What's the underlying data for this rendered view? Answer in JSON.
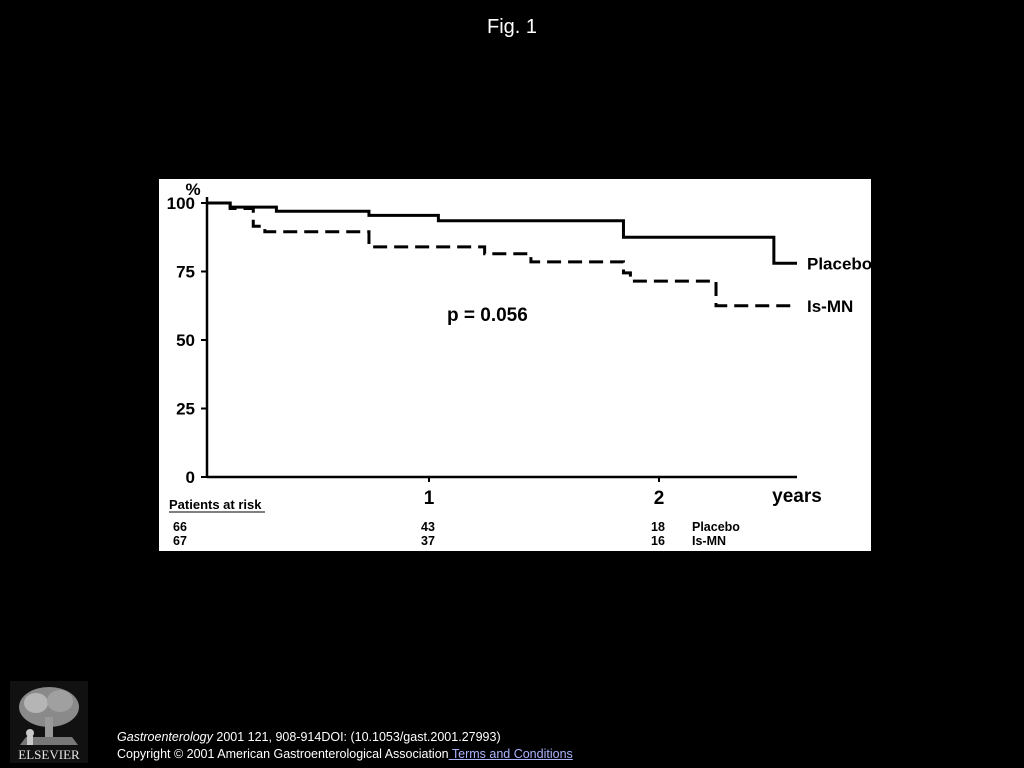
{
  "figure_title": "Fig. 1",
  "chart_data": {
    "type": "line",
    "title": "",
    "xlabel": "years",
    "ylabel": "%",
    "xlim": [
      0,
      2.6
    ],
    "ylim": [
      0,
      100
    ],
    "x_ticks": [
      "1",
      "2"
    ],
    "y_ticks": [
      "0",
      "25",
      "50",
      "75",
      "100"
    ],
    "series": [
      {
        "name": "Placebo",
        "style": "solid",
        "x": [
          0,
          0.1,
          0.3,
          0.7,
          1.0,
          1.8,
          2.45,
          2.55
        ],
        "y": [
          100,
          98.5,
          97,
          95.5,
          93.5,
          87.5,
          78,
          78
        ]
      },
      {
        "name": "Is-MN",
        "style": "dashed",
        "x": [
          0,
          0.1,
          0.2,
          0.25,
          0.7,
          1.2,
          1.4,
          1.8,
          1.83,
          2.2,
          2.55
        ],
        "y": [
          100,
          98,
          91.5,
          89.5,
          84,
          81.5,
          78.5,
          74.5,
          71.5,
          62.5,
          62.5
        ]
      }
    ],
    "annotation": "p = 0.056",
    "risk_table": {
      "heading": "Patients at risk",
      "rows": [
        {
          "values": [
            "66",
            "43",
            "18"
          ],
          "label": "Placebo"
        },
        {
          "values": [
            "67",
            "37",
            "16"
          ],
          "label": "Is-MN"
        }
      ]
    }
  },
  "footer": {
    "logo_text": "ELSEVIER",
    "journal": "Gastroenterology",
    "citation": " 2001 121, 908-914DOI: (10.1053/gast.2001.27993)",
    "copyright": "Copyright © 2001 American Gastroenterological Association",
    "terms_link": " Terms and Conditions"
  }
}
